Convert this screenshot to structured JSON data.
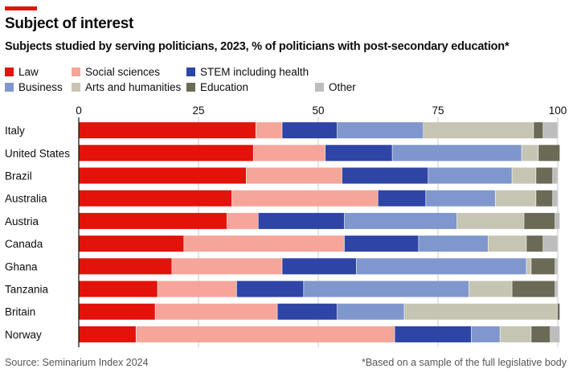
{
  "header": {
    "title": "Subject of interest",
    "subtitle": "Subjects studied by serving politicians, 2023, % of politicians with post-secondary education*"
  },
  "footer": {
    "source": "Source: Seminarium Index 2024",
    "footnote": "*Based on a sample of the full legislative body"
  },
  "colors": {
    "accent": "#e3120b",
    "law": "#e3120b",
    "social": "#f5a599",
    "stem": "#2e45a6",
    "business": "#7f97cc",
    "arts": "#c6c5b4",
    "education": "#6b6a56",
    "other": "#bdbdbd"
  },
  "chart_data": {
    "type": "bar",
    "orientation": "horizontal",
    "stacked": true,
    "title": "Subjects studied by serving politicians, 2023, % of politicians with post-secondary education*",
    "xlabel": "",
    "ylabel": "",
    "xlim": [
      0,
      100
    ],
    "xticks": [
      0,
      25,
      50,
      75,
      100
    ],
    "grid": true,
    "legend_position": "top",
    "categories": [
      "Italy",
      "United States",
      "Brazil",
      "Australia",
      "Austria",
      "Canada",
      "Ghana",
      "Tanzania",
      "Britain",
      "Norway"
    ],
    "series": [
      {
        "name": "Law",
        "key": "law",
        "values": [
          37,
          36.5,
          35,
          32,
          31,
          22,
          19.5,
          16.5,
          16,
          12
        ]
      },
      {
        "name": "Social sciences",
        "key": "social",
        "values": [
          5.5,
          15,
          20,
          30.5,
          6.5,
          33.5,
          23,
          16.5,
          25.5,
          54
        ]
      },
      {
        "name": "STEM including health",
        "key": "stem",
        "values": [
          11.5,
          14,
          18,
          10,
          18,
          15.5,
          15.5,
          14,
          12.5,
          16
        ]
      },
      {
        "name": "Business",
        "key": "business",
        "values": [
          18,
          27,
          17.5,
          14.5,
          23.5,
          14.5,
          35.5,
          34.5,
          14,
          6
        ]
      },
      {
        "name": "Arts and humanities",
        "key": "arts",
        "values": [
          23,
          3.5,
          5,
          8.5,
          14,
          8,
          1,
          9,
          32,
          6.5
        ]
      },
      {
        "name": "Education",
        "key": "education",
        "values": [
          2,
          4.5,
          3.5,
          3.5,
          6.5,
          3.5,
          5,
          9,
          0.5,
          4
        ]
      },
      {
        "name": "Other",
        "key": "other",
        "values": [
          3,
          0,
          1,
          1,
          1,
          3,
          0.5,
          0.5,
          0,
          2
        ]
      }
    ],
    "legend": [
      {
        "label": "Law",
        "key": "law"
      },
      {
        "label": "Social sciences",
        "key": "social"
      },
      {
        "label": "STEM including health",
        "key": "stem"
      },
      {
        "label": "Business",
        "key": "business"
      },
      {
        "label": "Arts and humanities",
        "key": "arts"
      },
      {
        "label": "Education",
        "key": "education"
      },
      {
        "label": "Other",
        "key": "other"
      }
    ]
  }
}
